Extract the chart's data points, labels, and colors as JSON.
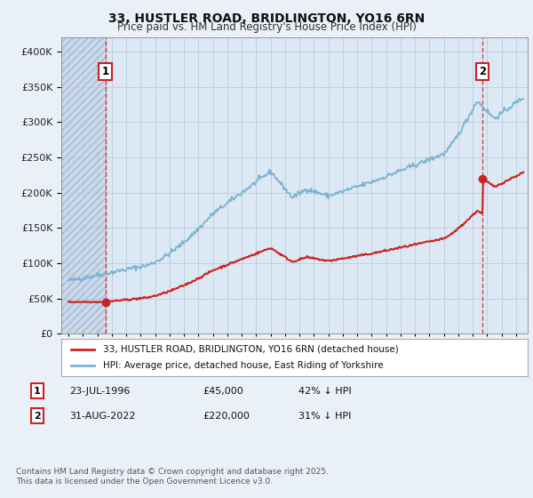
{
  "title": "33, HUSTLER ROAD, BRIDLINGTON, YO16 6RN",
  "subtitle": "Price paid vs. HM Land Registry's House Price Index (HPI)",
  "legend_line1": "33, HUSTLER ROAD, BRIDLINGTON, YO16 6RN (detached house)",
  "legend_line2": "HPI: Average price, detached house, East Riding of Yorkshire",
  "sale1_label": "1",
  "sale1_date": "23-JUL-1996",
  "sale1_price": "£45,000",
  "sale1_hpi": "42% ↓ HPI",
  "sale1_year": 1996.55,
  "sale1_value": 45000,
  "sale2_label": "2",
  "sale2_date": "31-AUG-2022",
  "sale2_price": "£220,000",
  "sale2_hpi": "31% ↓ HPI",
  "sale2_year": 2022.66,
  "sale2_value": 220000,
  "hpi_color": "#7ab3d4",
  "price_color": "#cc2222",
  "annotation_color": "#cc2222",
  "background_color": "#eaf0f8",
  "plot_bg_color": "#dce8f4",
  "grid_color": "#c0d0e0",
  "ylim_min": 0,
  "ylim_max": 420000,
  "xlim_min": 1993.5,
  "xlim_max": 2025.8,
  "footnote": "Contains HM Land Registry data © Crown copyright and database right 2025.\nThis data is licensed under the Open Government Licence v3.0."
}
